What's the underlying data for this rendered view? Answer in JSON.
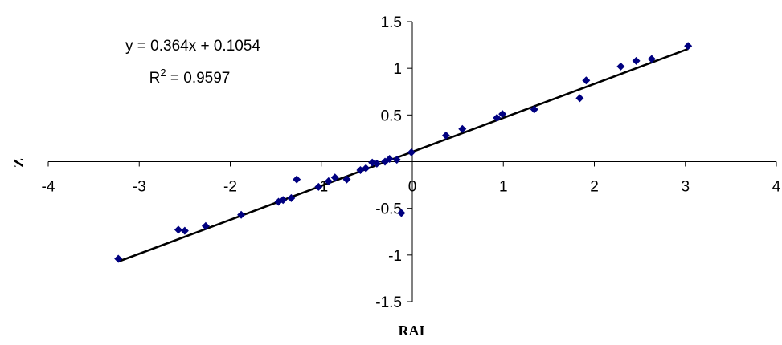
{
  "chart_data": {
    "type": "scatter",
    "xlabel": "RAI",
    "ylabel": "Z",
    "xlim": [
      -4,
      4
    ],
    "ylim": [
      -1.5,
      1.5
    ],
    "x_ticks": [
      "-4",
      "-3",
      "-2",
      "-1",
      "0",
      "1",
      "2",
      "3",
      "4"
    ],
    "y_ticks": [
      "-1.5",
      "-1",
      "-0.5",
      "0.5",
      "1",
      "1.5"
    ],
    "grid": false,
    "marker_color": "#000080",
    "trendline_color": "#000000",
    "trendline": {
      "slope": 0.364,
      "intercept": 0.1054,
      "equation": "y = 0.364x + 0.1054",
      "r2_prefix": "R",
      "r2_exponent": "2",
      "r2_value": " = 0.9597"
    },
    "series": [
      {
        "points": [
          [
            -3.23,
            -1.04
          ],
          [
            -2.57,
            -0.73
          ],
          [
            -2.5,
            -0.74
          ],
          [
            -2.27,
            -0.69
          ],
          [
            -1.88,
            -0.57
          ],
          [
            -1.47,
            -0.43
          ],
          [
            -1.42,
            -0.41
          ],
          [
            -1.33,
            -0.39
          ],
          [
            -1.27,
            -0.19
          ],
          [
            -1.03,
            -0.27
          ],
          [
            -0.92,
            -0.21
          ],
          [
            -0.85,
            -0.17
          ],
          [
            -0.72,
            -0.19
          ],
          [
            -0.57,
            -0.09
          ],
          [
            -0.51,
            -0.07
          ],
          [
            -0.44,
            -0.01
          ],
          [
            -0.39,
            -0.02
          ],
          [
            -0.3,
            0.0
          ],
          [
            -0.25,
            0.03
          ],
          [
            -0.17,
            0.02
          ],
          [
            -0.12,
            -0.55
          ],
          [
            -0.01,
            0.1
          ],
          [
            0.37,
            0.28
          ],
          [
            0.55,
            0.35
          ],
          [
            0.93,
            0.47
          ],
          [
            0.99,
            0.51
          ],
          [
            1.34,
            0.56
          ],
          [
            1.84,
            0.68
          ],
          [
            1.91,
            0.87
          ],
          [
            2.29,
            1.02
          ],
          [
            2.46,
            1.08
          ],
          [
            2.63,
            1.1
          ],
          [
            3.03,
            1.24
          ]
        ]
      }
    ]
  }
}
